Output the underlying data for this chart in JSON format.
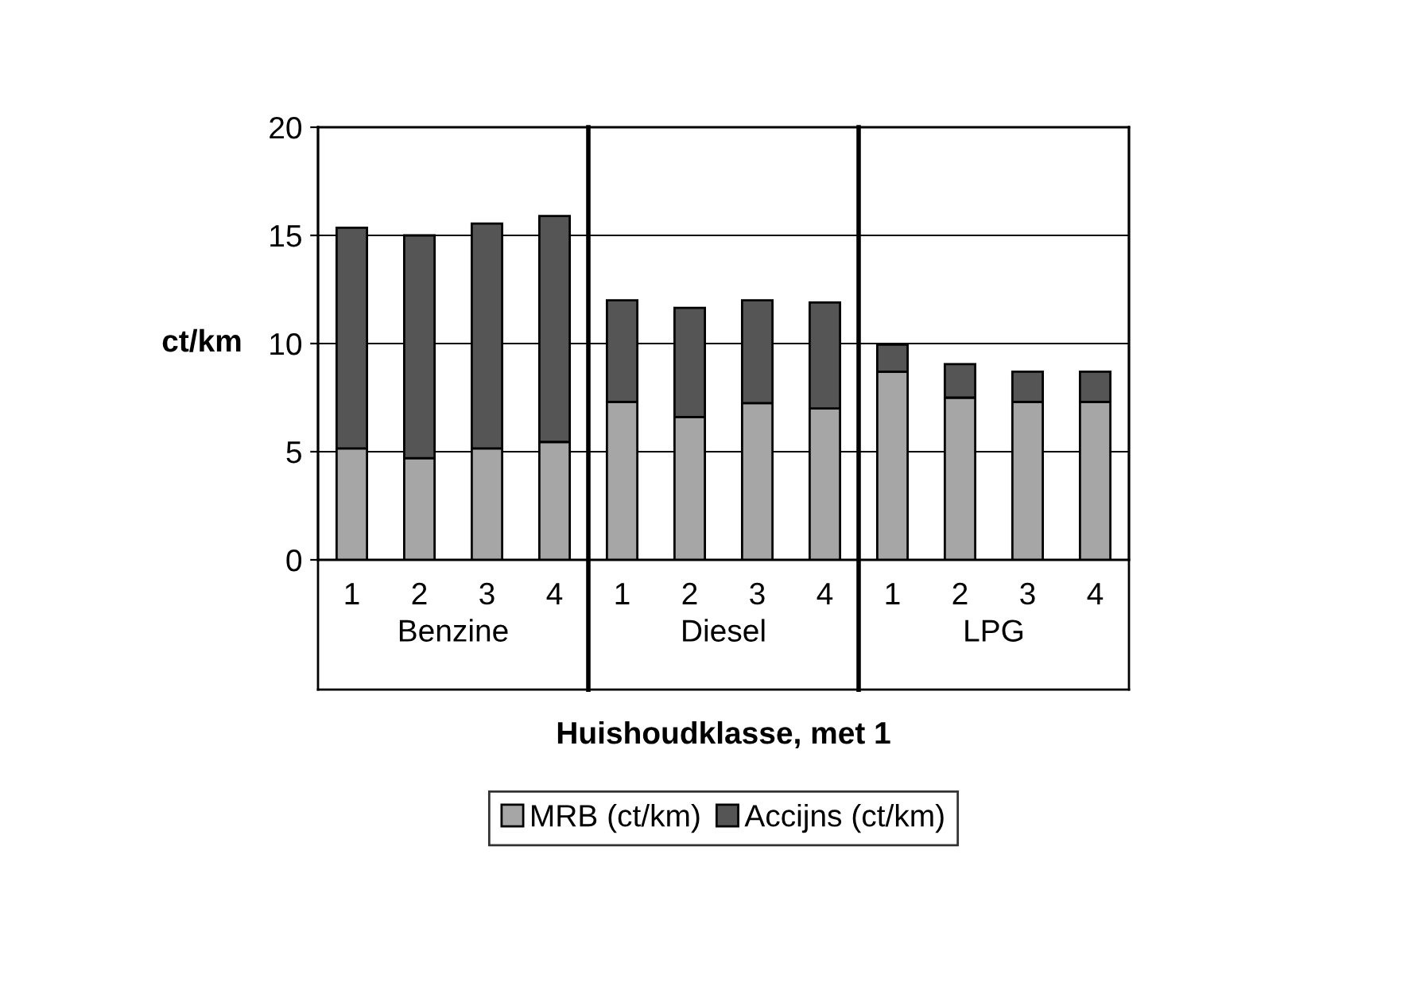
{
  "chart_data": {
    "type": "bar",
    "stacked": true,
    "xlabel": "Huishoudklasse, met 1",
    "ylabel": "ct/km",
    "categories": [
      "1",
      "2",
      "3",
      "4",
      "1",
      "2",
      "3",
      "4",
      "1",
      "2",
      "3",
      "4"
    ],
    "annotations": [
      "Benzine",
      "Diesel",
      "LPG"
    ],
    "series": [
      {
        "name": "MRB (ct/km)",
        "color": "#a6a6a6",
        "values": [
          5.15,
          4.7,
          5.15,
          5.45,
          7.3,
          6.6,
          7.25,
          7.0,
          8.7,
          7.5,
          7.3,
          7.3
        ]
      },
      {
        "name": "Accijns (ct/km)",
        "color": "#555555",
        "values": [
          10.2,
          10.3,
          10.4,
          10.45,
          4.7,
          5.05,
          4.75,
          4.9,
          1.25,
          1.55,
          1.4,
          1.4
        ]
      }
    ],
    "ylim": [
      0,
      20
    ],
    "yticks": [
      0,
      5,
      10,
      15,
      20
    ],
    "grid": "y",
    "legend": "bottom"
  }
}
